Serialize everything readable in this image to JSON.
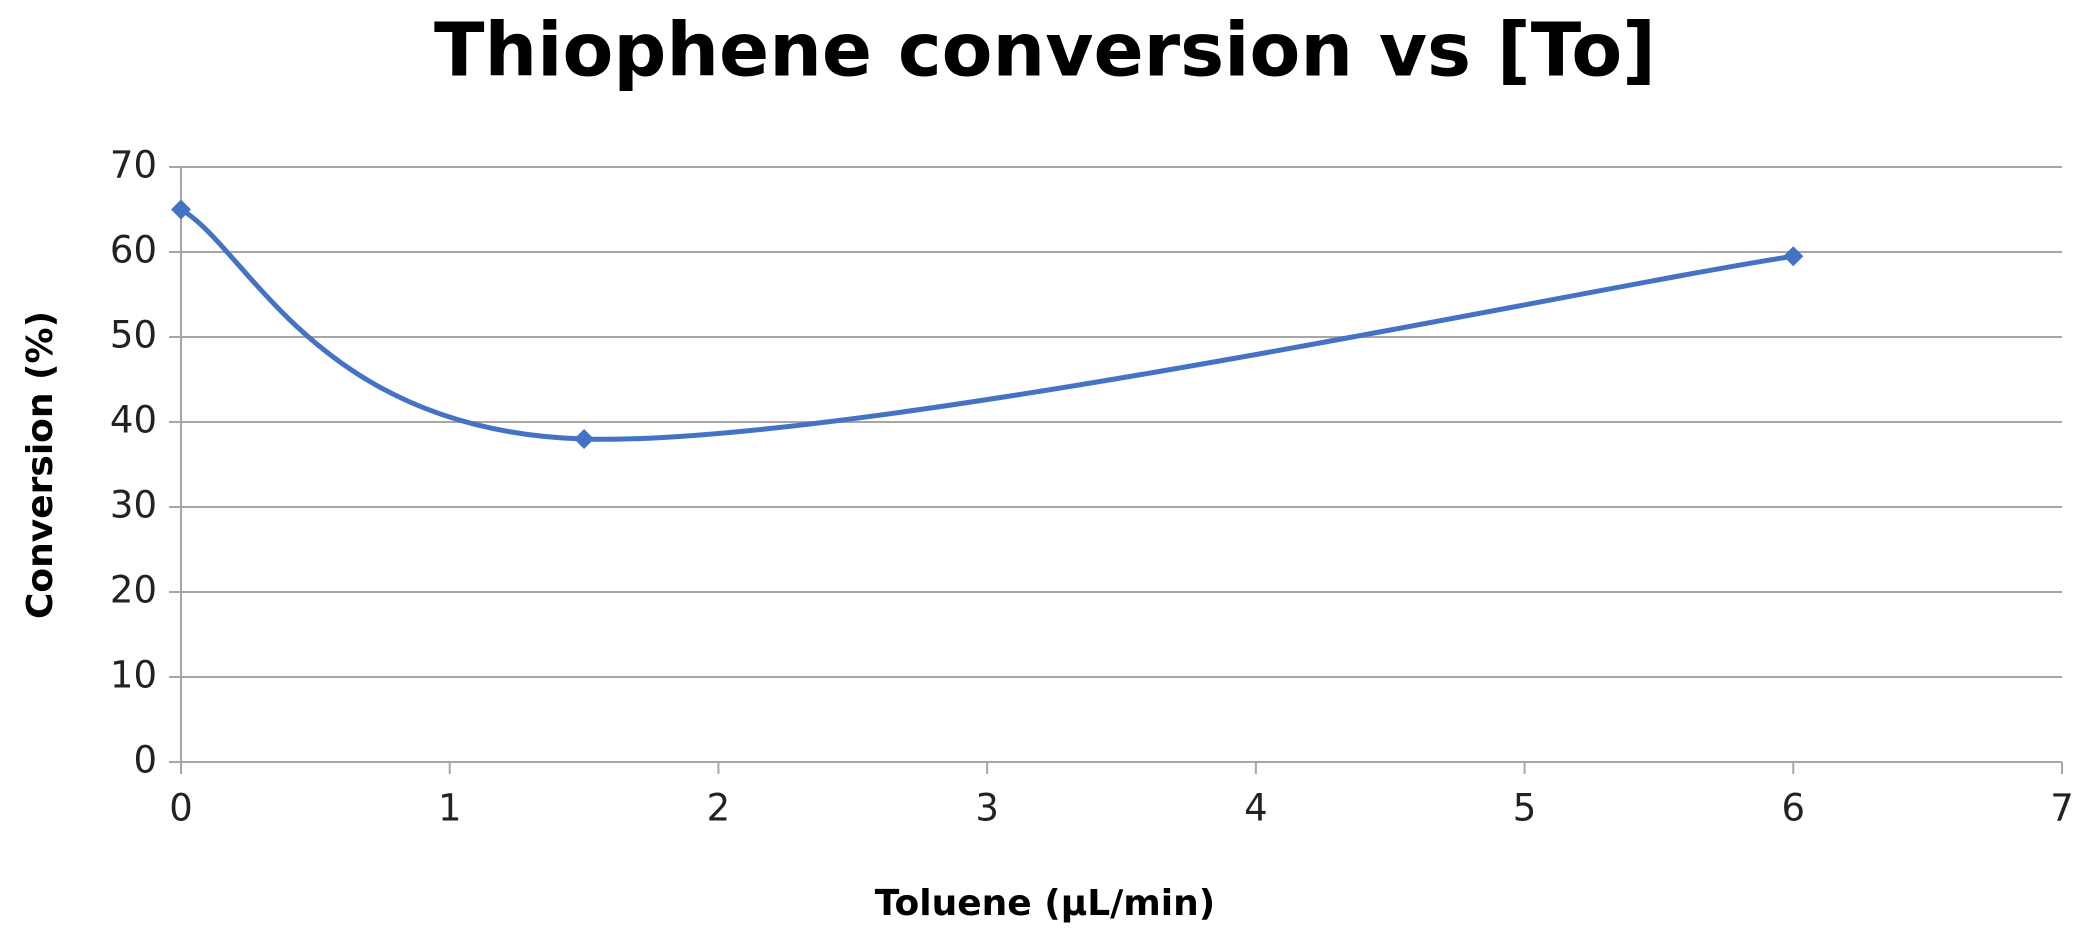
{
  "chart_data": {
    "type": "line",
    "title": "Thiophene conversion vs [To]",
    "x_label": "Toluene (µL/min)",
    "y_label": "Conversion (%)",
    "x": [
      0,
      1.5,
      6
    ],
    "values": [
      65,
      38,
      59.5
    ],
    "color": "#4472c4",
    "smooth": true,
    "xlim": [
      0,
      7
    ],
    "xticks": [
      0,
      1,
      2,
      3,
      4,
      5,
      6,
      7
    ],
    "ylim": [
      0,
      70
    ],
    "yticks": [
      0,
      10,
      20,
      30,
      40,
      50,
      60,
      70
    ],
    "grid": true
  }
}
